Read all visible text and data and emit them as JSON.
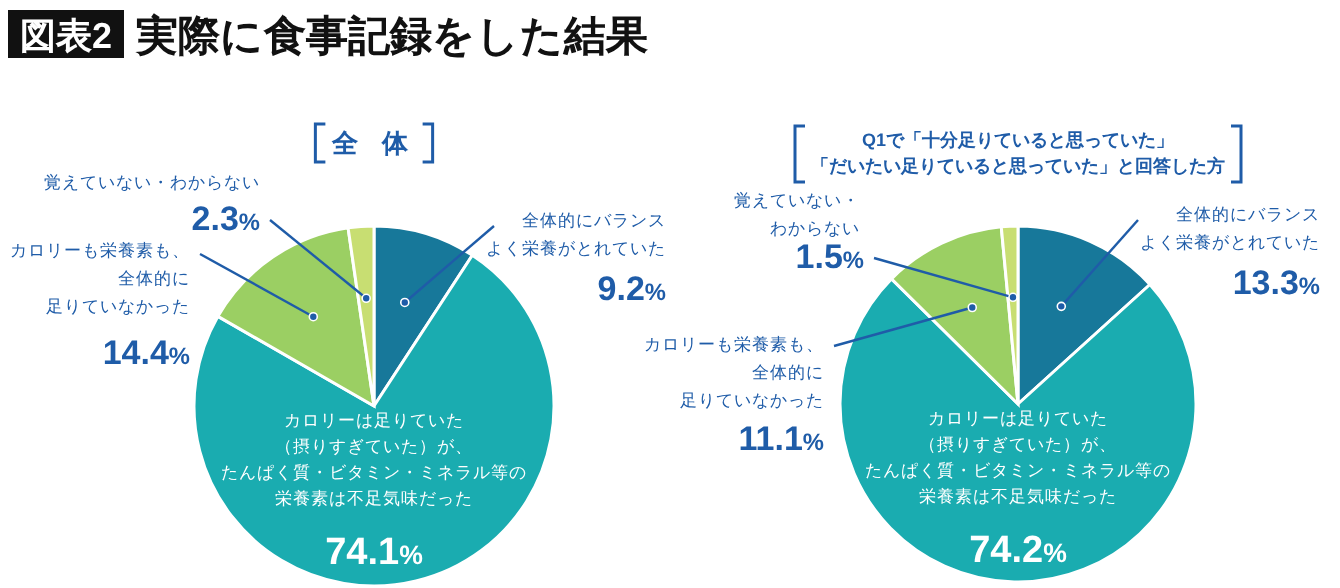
{
  "chart_data": [
    {
      "type": "pie",
      "title": "全 体",
      "annotations": [
        "図表2",
        "実際に食事記録をした結果"
      ],
      "categories": [
        "全体的にバランスよく栄養がとれていた",
        "カロリーは足りていた（摂りすぎていた）が、たんぱく質・ビタミン・ミネラル等の栄養素は不足気味だった",
        "カロリーも栄養素も、全体的に足りていなかった",
        "覚えていない・わからない"
      ],
      "values": [
        9.2,
        74.1,
        14.4,
        2.3
      ],
      "value_labels": [
        "9.2%",
        "74.1%",
        "14.4%",
        "2.3%"
      ],
      "colors": [
        "#17789a",
        "#1aacb0",
        "#9bcf63",
        "#c8de72"
      ]
    },
    {
      "type": "pie",
      "title": "Q1で「十分足りていると思っていた」「だいたい足りていると思っていた」と回答した方",
      "categories": [
        "全体的にバランスよく栄養がとれていた",
        "カロリーは足りていた（摂りすぎていた）が、たんぱく質・ビタミン・ミネラル等の栄養素は不足気味だった",
        "カロリーも栄養素も、全体的に足りていなかった",
        "覚えていない・わからない"
      ],
      "values": [
        13.3,
        74.2,
        11.1,
        1.5
      ],
      "value_labels": [
        "13.3%",
        "74.2%",
        "11.1%",
        "1.5%"
      ],
      "colors": [
        "#17789a",
        "#1aacb0",
        "#9bcf63",
        "#c8de72"
      ]
    }
  ]
}
